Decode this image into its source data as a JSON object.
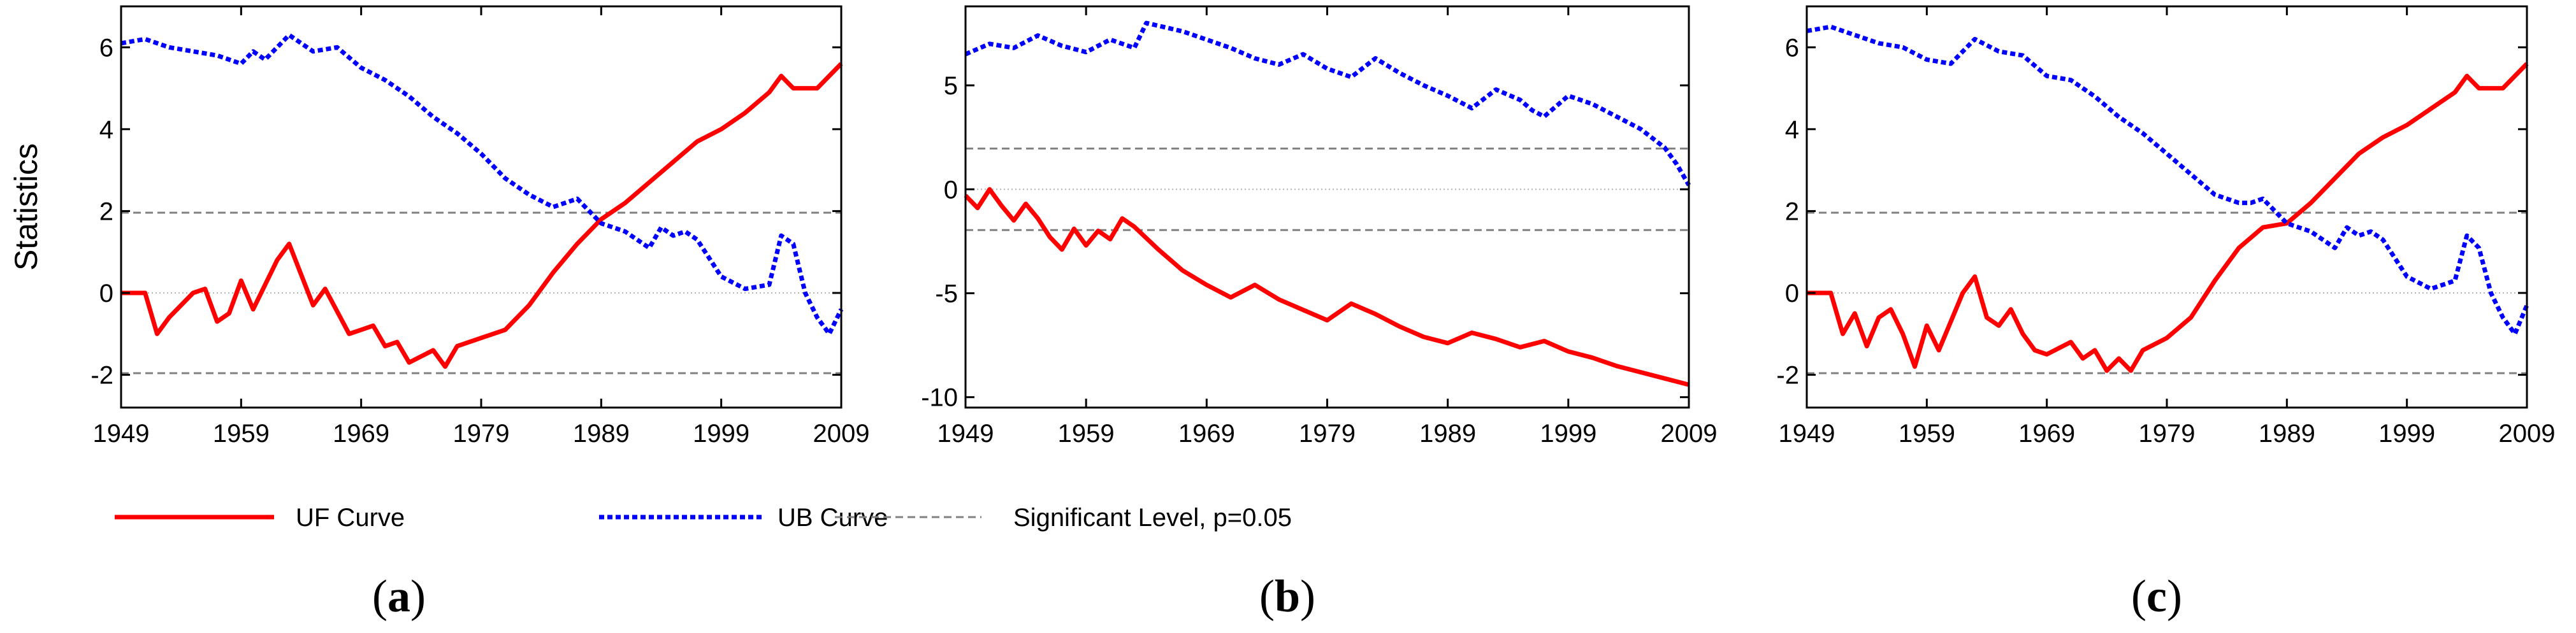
{
  "chart_data": [
    {
      "type": "line",
      "panel_label": "a",
      "ylabel": "Statistics",
      "xlim": [
        1949,
        2009
      ],
      "ylim": [
        -2.8,
        7.0
      ],
      "xticks": [
        1949,
        1959,
        1969,
        1979,
        1989,
        1999,
        2009
      ],
      "yticks": [
        -2,
        0,
        2,
        4,
        6
      ],
      "significance_levels": [
        1.96,
        -1.96
      ],
      "zero_line": 0,
      "series": [
        {
          "name": "UF Curve",
          "x": [
            1949,
            1951,
            1952,
            1953,
            1955,
            1956,
            1957,
            1958,
            1959,
            1960,
            1962,
            1963,
            1965,
            1966,
            1968,
            1969,
            1970,
            1971,
            1972,
            1973,
            1975,
            1976,
            1977,
            1979,
            1981,
            1983,
            1985,
            1987,
            1989,
            1991,
            1993,
            1995,
            1997,
            1999,
            2001,
            2003,
            2004,
            2005,
            2007,
            2009
          ],
          "values": [
            0,
            0,
            -1.0,
            -0.6,
            0.0,
            0.1,
            -0.7,
            -0.5,
            0.3,
            -0.4,
            0.8,
            1.2,
            -0.3,
            0.1,
            -1.0,
            -0.9,
            -0.8,
            -1.3,
            -1.2,
            -1.7,
            -1.4,
            -1.8,
            -1.3,
            -1.1,
            -0.9,
            -0.3,
            0.5,
            1.2,
            1.8,
            2.2,
            2.7,
            3.2,
            3.7,
            4.0,
            4.4,
            4.9,
            5.3,
            5.0,
            5.0,
            5.6
          ]
        },
        {
          "name": "UB Curve",
          "x": [
            1949,
            1951,
            1953,
            1955,
            1957,
            1959,
            1960,
            1961,
            1963,
            1965,
            1967,
            1969,
            1971,
            1973,
            1975,
            1977,
            1979,
            1981,
            1983,
            1985,
            1986,
            1987,
            1989,
            1991,
            1993,
            1994,
            1995,
            1996,
            1997,
            1999,
            2001,
            2003,
            2004,
            2005,
            2006,
            2007,
            2008,
            2009
          ],
          "values": [
            6.1,
            6.2,
            6.0,
            5.9,
            5.8,
            5.6,
            5.9,
            5.7,
            6.3,
            5.9,
            6.0,
            5.5,
            5.2,
            4.8,
            4.3,
            3.9,
            3.4,
            2.8,
            2.4,
            2.1,
            2.2,
            2.3,
            1.7,
            1.5,
            1.1,
            1.6,
            1.4,
            1.5,
            1.3,
            0.4,
            0.1,
            0.2,
            1.4,
            1.2,
            0.0,
            -0.6,
            -1.0,
            -0.4
          ]
        }
      ]
    },
    {
      "type": "line",
      "panel_label": "b",
      "xlim": [
        1949,
        2009
      ],
      "ylim": [
        -10.5,
        8.8
      ],
      "xticks": [
        1949,
        1959,
        1969,
        1979,
        1989,
        1999,
        2009
      ],
      "yticks": [
        -10,
        -5,
        0,
        5
      ],
      "significance_levels": [
        1.96,
        -1.96
      ],
      "zero_line": 0,
      "series": [
        {
          "name": "UF Curve",
          "x": [
            1949,
            1950,
            1951,
            1952,
            1953,
            1954,
            1955,
            1956,
            1957,
            1958,
            1959,
            1960,
            1961,
            1962,
            1963,
            1965,
            1967,
            1969,
            1971,
            1973,
            1975,
            1977,
            1979,
            1981,
            1983,
            1985,
            1987,
            1989,
            1991,
            1993,
            1995,
            1997,
            1999,
            2001,
            2003,
            2005,
            2007,
            2009
          ],
          "values": [
            -0.3,
            -0.9,
            0.0,
            -0.8,
            -1.5,
            -0.7,
            -1.4,
            -2.3,
            -2.9,
            -1.9,
            -2.7,
            -2.0,
            -2.4,
            -1.4,
            -1.8,
            -2.9,
            -3.9,
            -4.6,
            -5.2,
            -4.6,
            -5.3,
            -5.8,
            -6.3,
            -5.5,
            -6.0,
            -6.6,
            -7.1,
            -7.4,
            -6.9,
            -7.2,
            -7.6,
            -7.3,
            -7.8,
            -8.1,
            -8.5,
            -8.8,
            -9.1,
            -9.4
          ]
        },
        {
          "name": "UB Curve",
          "x": [
            1949,
            1951,
            1953,
            1955,
            1957,
            1959,
            1961,
            1963,
            1964,
            1967,
            1969,
            1971,
            1973,
            1975,
            1977,
            1979,
            1981,
            1983,
            1985,
            1987,
            1989,
            1991,
            1993,
            1995,
            1996,
            1997,
            1999,
            2001,
            2003,
            2005,
            2007,
            2008,
            2009
          ],
          "values": [
            6.5,
            7.0,
            6.8,
            7.4,
            6.9,
            6.6,
            7.2,
            6.8,
            8.0,
            7.6,
            7.2,
            6.8,
            6.3,
            6.0,
            6.5,
            5.8,
            5.4,
            6.3,
            5.6,
            5.0,
            4.5,
            3.9,
            4.8,
            4.3,
            3.8,
            3.5,
            4.5,
            4.1,
            3.5,
            2.9,
            2.0,
            1.2,
            0.2
          ]
        }
      ]
    },
    {
      "type": "line",
      "panel_label": "c",
      "xlim": [
        1949,
        2009
      ],
      "ylim": [
        -2.8,
        7.0
      ],
      "xticks": [
        1949,
        1959,
        1969,
        1979,
        1989,
        1999,
        2009
      ],
      "yticks": [
        -2,
        0,
        2,
        4,
        6
      ],
      "significance_levels": [
        1.96,
        -1.96
      ],
      "zero_line": 0,
      "series": [
        {
          "name": "UF Curve",
          "x": [
            1949,
            1951,
            1952,
            1953,
            1954,
            1955,
            1956,
            1957,
            1958,
            1959,
            1960,
            1962,
            1963,
            1964,
            1965,
            1966,
            1967,
            1968,
            1969,
            1971,
            1972,
            1973,
            1974,
            1975,
            1976,
            1977,
            1979,
            1981,
            1983,
            1985,
            1987,
            1989,
            1991,
            1993,
            1995,
            1997,
            1999,
            2001,
            2003,
            2004,
            2005,
            2007,
            2009
          ],
          "values": [
            0,
            0,
            -1.0,
            -0.5,
            -1.3,
            -0.6,
            -0.4,
            -1.0,
            -1.8,
            -0.8,
            -1.4,
            0.0,
            0.4,
            -0.6,
            -0.8,
            -0.4,
            -1.0,
            -1.4,
            -1.5,
            -1.2,
            -1.6,
            -1.4,
            -1.9,
            -1.6,
            -1.9,
            -1.4,
            -1.1,
            -0.6,
            0.3,
            1.1,
            1.6,
            1.7,
            2.2,
            2.8,
            3.4,
            3.8,
            4.1,
            4.5,
            4.9,
            5.3,
            5.0,
            5.0,
            5.6
          ]
        },
        {
          "name": "UB Curve",
          "x": [
            1949,
            1951,
            1953,
            1955,
            1957,
            1959,
            1961,
            1963,
            1965,
            1967,
            1969,
            1971,
            1973,
            1975,
            1977,
            1979,
            1981,
            1983,
            1985,
            1986,
            1987,
            1989,
            1991,
            1993,
            1994,
            1995,
            1996,
            1997,
            1999,
            2001,
            2003,
            2004,
            2005,
            2006,
            2007,
            2008,
            2009
          ],
          "values": [
            6.4,
            6.5,
            6.3,
            6.1,
            6.0,
            5.7,
            5.6,
            6.2,
            5.9,
            5.8,
            5.3,
            5.2,
            4.8,
            4.3,
            3.9,
            3.4,
            2.9,
            2.4,
            2.2,
            2.2,
            2.3,
            1.7,
            1.5,
            1.1,
            1.6,
            1.4,
            1.5,
            1.3,
            0.4,
            0.1,
            0.3,
            1.4,
            1.1,
            0.0,
            -0.6,
            -1.0,
            -0.3
          ]
        }
      ]
    }
  ],
  "legend": {
    "items": [
      {
        "label": "UF Curve",
        "color": "#ff0000",
        "style": "solid"
      },
      {
        "label": "UB Curve",
        "color": "#0000ff",
        "style": "dotted"
      },
      {
        "label": "Significant Level, p=0.05",
        "color": "#808080",
        "style": "dashed"
      }
    ],
    "placement": "bottom"
  },
  "colors": {
    "uf": "#ff0000",
    "ub": "#0000ff",
    "significance": "#808080",
    "zero": "#b3b3b3",
    "axis": "#000000"
  },
  "panel_labels": [
    {
      "open": "(",
      "letter": "a",
      "close": ")"
    },
    {
      "open": "(",
      "letter": "b",
      "close": ")"
    },
    {
      "open": "(",
      "letter": "c",
      "close": ")"
    }
  ]
}
